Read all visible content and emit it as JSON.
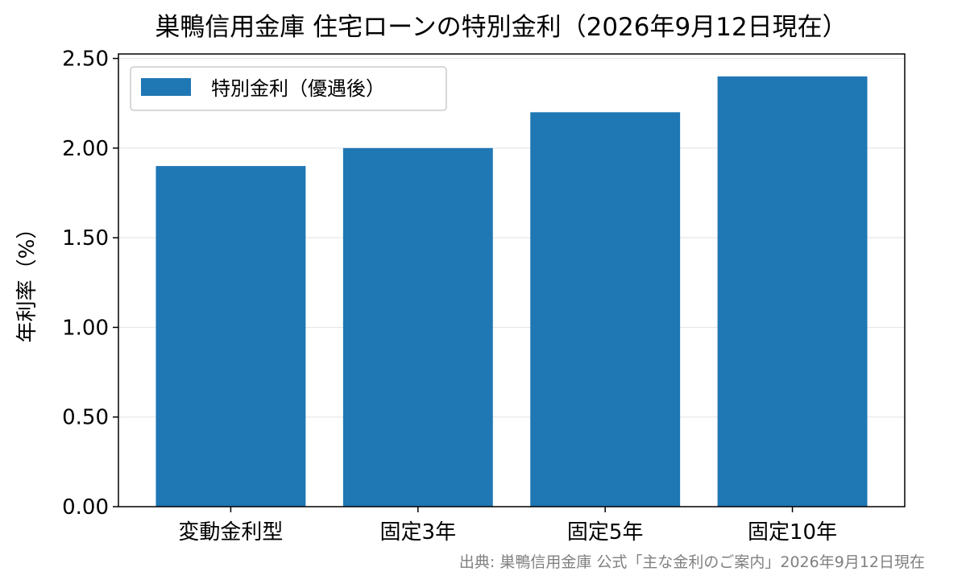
{
  "chart_data": {
    "type": "bar",
    "title": "巣鴨信用金庫 住宅ローンの特別金利（2026年9月12日現在）",
    "xlabel": "",
    "ylabel": "年利率（%）",
    "categories": [
      "変動金利型",
      "固定3年",
      "固定5年",
      "固定10年"
    ],
    "series": [
      {
        "name": "特別金利（優遇後）",
        "values": [
          1.9,
          2.0,
          2.2,
          2.4
        ],
        "color": "#1f77b4"
      }
    ],
    "ylim": [
      0,
      2.525
    ],
    "yticks": [
      0.0,
      0.5,
      1.0,
      1.5,
      2.0,
      2.5
    ],
    "ytick_labels": [
      "0.00",
      "0.50",
      "1.00",
      "1.50",
      "2.00",
      "2.50"
    ],
    "grid": "y",
    "legend": "top-left",
    "source_note": "出典: 巣鴨信用金庫 公式「主な金利のご案内」2026年9月12日現在"
  }
}
